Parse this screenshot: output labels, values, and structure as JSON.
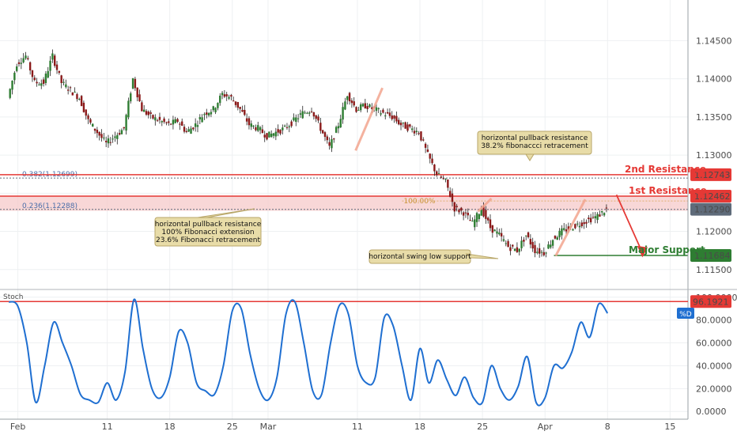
{
  "chart_data": [
    {
      "type": "candlestick",
      "title": "",
      "price_axis": {
        "ticks": [
          "1.14500",
          "1.14000",
          "1.13500",
          "1.13000",
          "1.12500",
          "1.12000",
          "1.11500"
        ],
        "tick_values": [
          1.145,
          1.14,
          1.135,
          1.13,
          1.125,
          1.12,
          1.115
        ],
        "ylim": [
          1.1128,
          1.1495
        ]
      },
      "time_axis": {
        "labels": [
          "Feb",
          "11",
          "18",
          "25",
          "Mar",
          "11",
          "18",
          "25",
          "Apr",
          "8",
          "15"
        ],
        "label_days": [
          0,
          10,
          17,
          24,
          28,
          38,
          45,
          52,
          59,
          66,
          73
        ],
        "xlim": [
          -2,
          75
        ]
      },
      "levels": [
        {
          "name": "2nd Resistance",
          "value": 1.12743,
          "value_label": "1.12743",
          "color": "#e53935"
        },
        {
          "name": "1st Resistance",
          "value": 1.12462,
          "value_label": "1.12462",
          "color": "#e53935"
        },
        {
          "name": "Major Support",
          "value": 1.11684,
          "value_label": "1.11684",
          "color": "#2e7d32"
        },
        {
          "name": "",
          "value": 1.1229,
          "value_label": "1.12290",
          "color": "#5f6b7a"
        }
      ],
      "fib_lines": [
        {
          "label": "0.382(1.12699)",
          "value": 1.12699
        },
        {
          "label": "0.236(1.12288)",
          "value": 1.12288
        },
        {
          "label": "100.00%",
          "value": 1.1246
        }
      ],
      "resistance_zone": [
        1.1227,
        1.1246
      ],
      "annotations": [
        {
          "lines": [
            "horizontal pullback resistance",
            "38.2% fibonaccci retracement"
          ]
        },
        {
          "lines": [
            "horizontal pullback resistance",
            "100% Fibonacci extension",
            "23.6% Fibonacci retracement"
          ]
        },
        {
          "lines": [
            "horizontal swing low support"
          ]
        }
      ],
      "ohlc": {
        "day": [
          -1,
          0,
          1,
          2,
          3,
          4,
          5,
          6,
          7,
          8,
          9,
          10,
          11,
          12,
          13,
          14,
          15,
          16,
          17,
          18,
          19,
          20,
          21,
          22,
          23,
          24,
          25,
          26,
          27,
          28,
          29,
          30,
          31,
          32,
          33,
          34,
          35,
          36,
          37,
          38,
          39,
          40,
          41,
          42,
          43,
          44,
          45,
          46,
          47,
          48,
          49,
          50,
          51,
          52,
          53,
          54,
          55,
          56,
          57,
          58,
          59,
          60,
          61,
          62,
          63,
          64,
          65,
          66
        ],
        "close": [
          1.1375,
          1.142,
          1.143,
          1.1395,
          1.1395,
          1.143,
          1.1395,
          1.1385,
          1.1375,
          1.1345,
          1.133,
          1.1315,
          1.1325,
          1.1335,
          1.14,
          1.136,
          1.135,
          1.1345,
          1.134,
          1.1345,
          1.133,
          1.134,
          1.1355,
          1.136,
          1.138,
          1.1375,
          1.136,
          1.134,
          1.1335,
          1.1325,
          1.133,
          1.1335,
          1.1345,
          1.1355,
          1.136,
          1.1335,
          1.131,
          1.134,
          1.138,
          1.136,
          1.1365,
          1.136,
          1.1355,
          1.135,
          1.134,
          1.1335,
          1.133,
          1.13,
          1.1275,
          1.1265,
          1.123,
          1.1225,
          1.121,
          1.123,
          1.1205,
          1.1195,
          1.118,
          1.1175,
          1.1195,
          1.1175,
          1.1172,
          1.119,
          1.12,
          1.1205,
          1.121,
          1.1215,
          1.122,
          1.1229
        ]
      },
      "stochastic": {
        "name": "Stoch",
        "legend": "%D",
        "ticks": [
          "100.0000",
          "80.0000",
          "60.0000",
          "40.0000",
          "20.0000",
          "0.0000"
        ],
        "tick_values": [
          100,
          80,
          60,
          40,
          20,
          0
        ],
        "ylim": [
          -4,
          104
        ],
        "level": 96.1921,
        "level_label": "96.1921",
        "day": [
          -1,
          0,
          1,
          2,
          3,
          4,
          5,
          6,
          7,
          8,
          9,
          10,
          11,
          12,
          13,
          14,
          15,
          16,
          17,
          18,
          19,
          20,
          21,
          22,
          23,
          24,
          25,
          26,
          27,
          28,
          29,
          30,
          31,
          32,
          33,
          34,
          35,
          36,
          37,
          38,
          39,
          40,
          41,
          42,
          43,
          44,
          45,
          46,
          47,
          48,
          49,
          50,
          51,
          52,
          53,
          54,
          55,
          56,
          57,
          58,
          59,
          60,
          61,
          62,
          63,
          64,
          65,
          66
        ],
        "values": [
          96,
          92,
          60,
          8,
          40,
          78,
          60,
          40,
          15,
          10,
          8,
          25,
          10,
          35,
          98,
          55,
          20,
          12,
          30,
          70,
          60,
          25,
          18,
          15,
          40,
          88,
          90,
          50,
          20,
          10,
          30,
          85,
          96,
          60,
          18,
          15,
          60,
          93,
          85,
          40,
          25,
          30,
          82,
          75,
          40,
          10,
          55,
          25,
          45,
          28,
          14,
          30,
          12,
          8,
          40,
          20,
          10,
          22,
          48,
          8,
          12,
          40,
          38,
          52,
          78,
          65,
          94,
          86
        ]
      }
    }
  ]
}
